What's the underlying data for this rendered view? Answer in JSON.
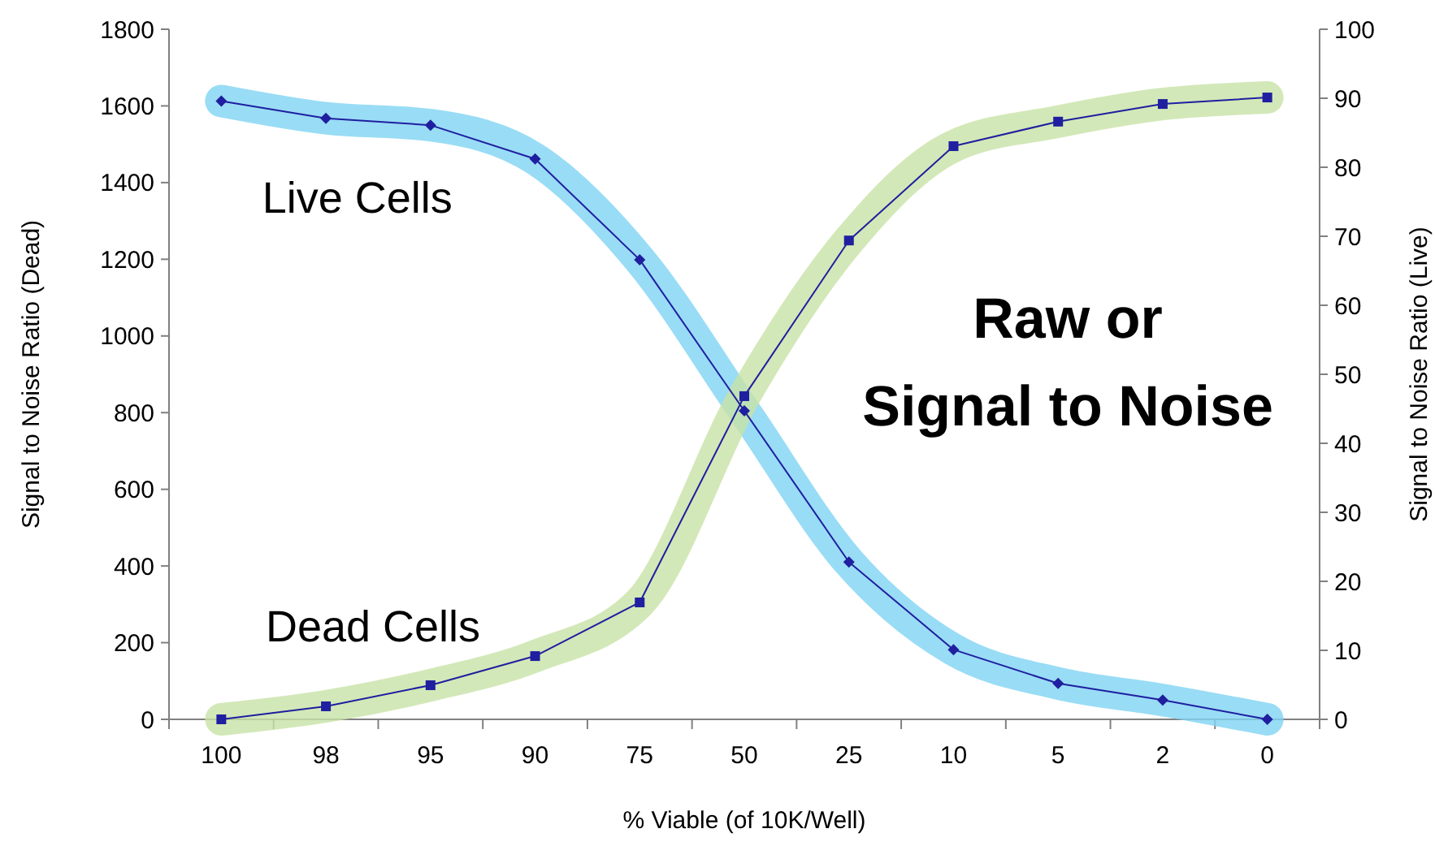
{
  "chart_data": {
    "type": "line",
    "categories": [
      "100",
      "98",
      "95",
      "90",
      "75",
      "50",
      "25",
      "10",
      "5",
      "2",
      "0"
    ],
    "xlabel": "% Viable (of 10K/Well)",
    "ylabel": "Signal to Noise Ratio (Dead)",
    "y2label": "Signal to Noise Ratio (Live)",
    "ylim": [
      0,
      1800
    ],
    "yticks": [
      0,
      200,
      400,
      600,
      800,
      1000,
      1200,
      1400,
      1600,
      1800
    ],
    "y2lim": [
      0,
      100
    ],
    "y2ticks": [
      0,
      10,
      20,
      30,
      40,
      50,
      60,
      70,
      80,
      90,
      100
    ],
    "series": [
      {
        "name": "Live Cells",
        "color": "#7fd3f2",
        "axis": "y2",
        "marker": "diamond",
        "values": [
          89.6,
          87.1,
          86.1,
          81.2,
          66.6,
          44.7,
          22.8,
          10.1,
          5.2,
          2.8,
          0
        ]
      },
      {
        "name": "Dead Cells",
        "color": "#c8e2a6",
        "marker": "square",
        "values": [
          0,
          34,
          89,
          165,
          305,
          843,
          1249,
          1495,
          1559,
          1605,
          1622
        ]
      }
    ],
    "annotations": [
      "Raw or\nSignal to Noise"
    ]
  }
}
